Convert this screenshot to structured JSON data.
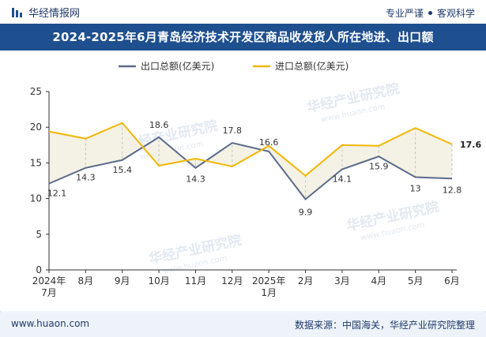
{
  "header": {
    "brand": "华经情报网",
    "slogan_left": "专业严谨",
    "slogan_right": "客观科学"
  },
  "footer": {
    "website": "www.huaon.com",
    "source": "数据来源：中国海关，华经产业研究院整理"
  },
  "watermark": "华经产业研究院",
  "watermark_url": "www.huaon.com",
  "chart_data": {
    "type": "line",
    "title": "2024-2025年6月青岛经济技术开发区商品收发货人所在地进、出口额",
    "categories": [
      "2024年\n7月",
      "8月",
      "9月",
      "10月",
      "11月",
      "12月",
      "2025年\n1月",
      "2月",
      "3月",
      "4月",
      "5月",
      "6月"
    ],
    "series": [
      {
        "name": "出口总额(亿美元)",
        "color": "#5b6b8c",
        "values": [
          12.1,
          14.3,
          15.4,
          18.6,
          14.3,
          17.8,
          16.6,
          9.9,
          14.1,
          15.9,
          13.0,
          12.8
        ],
        "labels": [
          "12.1",
          "14.3",
          "15.4",
          "18.6",
          "14.3",
          "17.8",
          "16.6",
          "9.9",
          "14.1",
          "15.9",
          "13",
          "12.8"
        ]
      },
      {
        "name": "进口总额(亿美元)",
        "color": "#f2b705",
        "values": [
          19.4,
          18.4,
          20.6,
          14.6,
          15.6,
          14.5,
          17.4,
          13.2,
          17.5,
          17.4,
          19.9,
          17.6
        ],
        "labels": [
          "",
          "",
          "",
          "",
          "",
          "",
          "",
          "",
          "",
          "",
          "",
          "17.6"
        ]
      }
    ],
    "ylim": [
      0,
      25
    ],
    "yticks": [
      0,
      5,
      10,
      15,
      20,
      25
    ],
    "legend": "top-center",
    "grid": false,
    "band_fill": "#f3efe2"
  }
}
